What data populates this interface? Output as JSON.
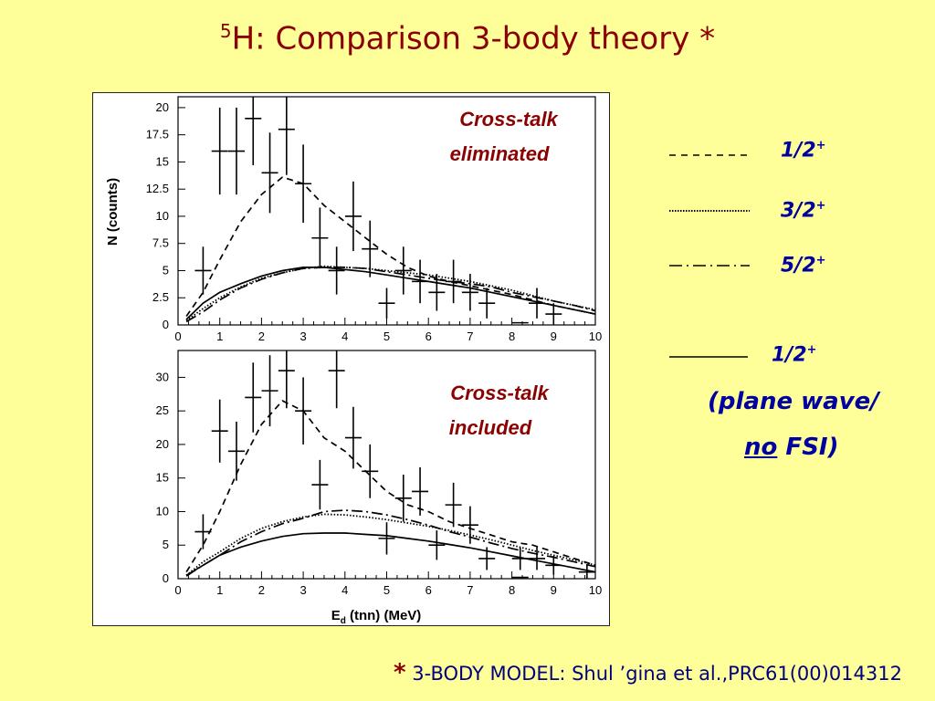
{
  "slide": {
    "title_sup": "5",
    "title": "H: Comparison 3-body theory *",
    "footer_star": "*",
    "footer": "3-BODY MODEL: Shul ’gina et al.,PRC61(00)014312"
  },
  "legend": [
    {
      "label": "1/2",
      "sup": "+",
      "style": "dashed"
    },
    {
      "label": "3/2",
      "sup": "+",
      "style": "dotted"
    },
    {
      "label": "5/2",
      "sup": "+",
      "style": "dash-dot"
    },
    {
      "label": "1/2",
      "sup": "+",
      "style": "solid",
      "note1": "(plane wave/",
      "note2_u": "no",
      "note2": " FSI)"
    }
  ],
  "chart_data": [
    {
      "type": "scatter",
      "annotation": [
        "Cross-talk",
        "eliminated"
      ],
      "ylabel": "N (counts)",
      "xlim": [
        0,
        10
      ],
      "ylim": [
        0,
        21
      ],
      "xticks": [
        0,
        1,
        2,
        3,
        4,
        5,
        6,
        7,
        8,
        9,
        10
      ],
      "yticks": [
        0,
        2.5,
        5,
        7.5,
        10,
        12.5,
        15,
        17.5,
        20
      ],
      "ytick_labels": [
        "0",
        "2.5",
        "5",
        "7.5",
        "10",
        "12.5",
        "15",
        "17.5",
        "20"
      ],
      "points": [
        {
          "x": 0.6,
          "y": 5,
          "err": 2.2
        },
        {
          "x": 1.0,
          "y": 16,
          "err": 4
        },
        {
          "x": 1.4,
          "y": 16,
          "err": 4
        },
        {
          "x": 1.8,
          "y": 19,
          "err": 4.3
        },
        {
          "x": 2.2,
          "y": 14,
          "err": 3.7
        },
        {
          "x": 2.6,
          "y": 18,
          "err": 4.2
        },
        {
          "x": 3.0,
          "y": 13,
          "err": 3.6
        },
        {
          "x": 3.4,
          "y": 8,
          "err": 2.8
        },
        {
          "x": 3.8,
          "y": 5,
          "err": 2.2
        },
        {
          "x": 4.2,
          "y": 10,
          "err": 3.2
        },
        {
          "x": 4.6,
          "y": 7,
          "err": 2.6
        },
        {
          "x": 5.0,
          "y": 2,
          "err": 1.4
        },
        {
          "x": 5.4,
          "y": 5,
          "err": 2.2
        },
        {
          "x": 5.8,
          "y": 4,
          "err": 2
        },
        {
          "x": 6.2,
          "y": 3,
          "err": 1.7
        },
        {
          "x": 6.6,
          "y": 4,
          "err": 2
        },
        {
          "x": 7.0,
          "y": 3,
          "err": 1.7
        },
        {
          "x": 7.4,
          "y": 2,
          "err": 1.4
        },
        {
          "x": 8.2,
          "y": 0.2,
          "err": 0
        },
        {
          "x": 8.6,
          "y": 2,
          "err": 1.4
        },
        {
          "x": 9.0,
          "y": 1,
          "err": 1
        }
      ],
      "series": [
        {
          "name": "1/2+",
          "style": "dashed",
          "x": [
            0.2,
            0.6,
            1.0,
            1.5,
            2.0,
            2.5,
            3.0,
            3.5,
            4.0,
            4.5,
            5.0,
            5.5,
            6.0,
            6.5,
            7.0,
            7.5,
            8.0,
            8.5,
            9.0,
            9.5,
            10.0
          ],
          "y": [
            0.8,
            3.0,
            6.0,
            9.5,
            12.0,
            13.6,
            13.0,
            11.0,
            9.5,
            8.0,
            6.5,
            5.3,
            4.5,
            4.0,
            3.6,
            3.2,
            2.8,
            2.3,
            1.8,
            1.4,
            1.0
          ]
        },
        {
          "name": "3/2+",
          "style": "dotted",
          "x": [
            0.2,
            0.6,
            1.0,
            1.5,
            2.0,
            2.5,
            3.0,
            3.5,
            4.0,
            4.5,
            5.0,
            5.5,
            6.0,
            6.5,
            7.0,
            7.5,
            8.0,
            8.5,
            9.0,
            9.5,
            10.0
          ],
          "y": [
            0.4,
            1.5,
            2.5,
            3.5,
            4.3,
            4.8,
            5.2,
            5.4,
            5.3,
            5.2,
            5.0,
            4.8,
            4.6,
            4.3,
            4.0,
            3.6,
            3.2,
            2.7,
            2.2,
            1.8,
            1.4
          ]
        },
        {
          "name": "5/2+",
          "style": "dash-dot",
          "x": [
            0.2,
            0.6,
            1.0,
            1.5,
            2.0,
            2.5,
            3.0,
            3.5,
            4.0,
            4.5,
            5.0,
            5.5,
            6.0,
            6.5,
            7.0,
            7.5,
            8.0,
            8.5,
            9.0,
            9.5,
            10.0
          ],
          "y": [
            0.3,
            1.2,
            2.3,
            3.4,
            4.2,
            4.8,
            5.2,
            5.3,
            5.3,
            5.2,
            4.9,
            4.6,
            4.3,
            4.0,
            3.8,
            3.5,
            3.0,
            2.6,
            2.2,
            1.8,
            1.3
          ]
        },
        {
          "name": "1/2+ (plane wave/ no FSI)",
          "style": "solid",
          "x": [
            0.2,
            0.6,
            1.0,
            1.5,
            2.0,
            2.5,
            3.0,
            3.5,
            4.0,
            4.5,
            5.0,
            5.5,
            6.0,
            6.5,
            7.0,
            7.5,
            8.0,
            8.5,
            9.0,
            9.5,
            10.0
          ],
          "y": [
            0.5,
            2.0,
            3.0,
            3.8,
            4.5,
            5.0,
            5.3,
            5.3,
            5.1,
            4.9,
            4.6,
            4.3,
            4.0,
            3.7,
            3.4,
            3.0,
            2.6,
            2.2,
            1.8,
            1.4,
            1.0
          ]
        }
      ]
    },
    {
      "type": "scatter",
      "annotation": [
        "Cross-talk",
        "included"
      ],
      "xlabel": "E_d (tnn)  (MeV)",
      "xlabel_main": "E",
      "xlabel_sub": "d",
      "xlabel_rest": " (tnn)  (MeV)",
      "xlim": [
        0,
        10
      ],
      "ylim": [
        0,
        34
      ],
      "xticks": [
        0,
        1,
        2,
        3,
        4,
        5,
        6,
        7,
        8,
        9,
        10
      ],
      "yticks": [
        0,
        5,
        10,
        15,
        20,
        25,
        30
      ],
      "ytick_labels": [
        "0",
        "5",
        "10",
        "15",
        "20",
        "25",
        "30"
      ],
      "points": [
        {
          "x": 0.6,
          "y": 7,
          "err": 2.6
        },
        {
          "x": 1.0,
          "y": 22,
          "err": 4.7
        },
        {
          "x": 1.4,
          "y": 19,
          "err": 4.4
        },
        {
          "x": 1.8,
          "y": 27,
          "err": 5.2
        },
        {
          "x": 2.2,
          "y": 28,
          "err": 5.3
        },
        {
          "x": 2.6,
          "y": 31,
          "err": 5.6
        },
        {
          "x": 3.0,
          "y": 25,
          "err": 5
        },
        {
          "x": 3.4,
          "y": 14,
          "err": 3.7
        },
        {
          "x": 3.8,
          "y": 31,
          "err": 5.6
        },
        {
          "x": 4.2,
          "y": 21,
          "err": 4.6
        },
        {
          "x": 4.6,
          "y": 16,
          "err": 4
        },
        {
          "x": 5.0,
          "y": 6,
          "err": 2.4
        },
        {
          "x": 5.4,
          "y": 12,
          "err": 3.5
        },
        {
          "x": 5.8,
          "y": 13,
          "err": 3.6
        },
        {
          "x": 6.2,
          "y": 5,
          "err": 2.2
        },
        {
          "x": 6.6,
          "y": 11,
          "err": 3.3
        },
        {
          "x": 7.0,
          "y": 8,
          "err": 2.8
        },
        {
          "x": 7.4,
          "y": 3,
          "err": 1.7
        },
        {
          "x": 8.2,
          "y": 0.2,
          "err": 0
        },
        {
          "x": 8.2,
          "y": 3,
          "err": 1.7
        },
        {
          "x": 8.6,
          "y": 3,
          "err": 1.7
        },
        {
          "x": 9.0,
          "y": 2,
          "err": 1.4
        },
        {
          "x": 9.8,
          "y": 1,
          "err": 1
        }
      ],
      "series": [
        {
          "name": "1/2+",
          "style": "dashed",
          "x": [
            0.2,
            0.6,
            1.0,
            1.5,
            2.0,
            2.5,
            3.0,
            3.5,
            4.0,
            4.5,
            5.0,
            5.5,
            6.0,
            6.5,
            7.0,
            7.5,
            8.0,
            8.5,
            9.0,
            9.5,
            10.0
          ],
          "y": [
            1.0,
            5.0,
            10.0,
            17.0,
            23.0,
            26.5,
            25.0,
            21.0,
            19.0,
            16.0,
            13.0,
            11.0,
            10.0,
            8.5,
            7.5,
            6.5,
            5.5,
            5.0,
            4.0,
            3.0,
            2.0
          ]
        },
        {
          "name": "3/2+",
          "style": "dotted",
          "x": [
            0.2,
            0.6,
            1.0,
            1.5,
            2.0,
            2.5,
            3.0,
            3.5,
            4.0,
            4.5,
            5.0,
            5.5,
            6.0,
            6.5,
            7.0,
            7.5,
            8.0,
            8.5,
            9.0,
            9.5,
            10.0
          ],
          "y": [
            0.5,
            2.5,
            4.0,
            6.0,
            7.5,
            8.5,
            9.2,
            9.6,
            9.5,
            9.2,
            8.8,
            8.3,
            7.8,
            7.2,
            6.5,
            5.8,
            5.0,
            4.2,
            3.5,
            2.8,
            2.0
          ]
        },
        {
          "name": "5/2+",
          "style": "dash-dot",
          "x": [
            0.2,
            0.6,
            1.0,
            1.5,
            2.0,
            2.5,
            3.0,
            3.5,
            4.0,
            4.5,
            5.0,
            5.5,
            6.0,
            6.5,
            7.0,
            7.5,
            8.0,
            8.5,
            9.0,
            9.5,
            10.0
          ],
          "y": [
            0.4,
            2.0,
            3.5,
            5.5,
            7.0,
            8.2,
            9.0,
            10.0,
            10.2,
            10.0,
            9.5,
            8.8,
            8.0,
            7.0,
            6.2,
            5.3,
            4.5,
            3.8,
            3.2,
            2.5,
            1.8
          ]
        },
        {
          "name": "1/2+ (plane wave/ no FSI)",
          "style": "solid",
          "x": [
            0.2,
            0.6,
            1.0,
            1.5,
            2.0,
            2.5,
            3.0,
            3.5,
            4.0,
            4.5,
            5.0,
            5.5,
            6.0,
            6.5,
            7.0,
            7.5,
            8.0,
            8.5,
            9.0,
            9.5,
            10.0
          ],
          "y": [
            0.5,
            2.0,
            3.5,
            4.7,
            5.6,
            6.3,
            6.7,
            6.8,
            6.8,
            6.6,
            6.4,
            6.0,
            5.6,
            5.1,
            4.6,
            4.0,
            3.4,
            2.8,
            2.2,
            1.6,
            1.0
          ]
        }
      ]
    }
  ]
}
